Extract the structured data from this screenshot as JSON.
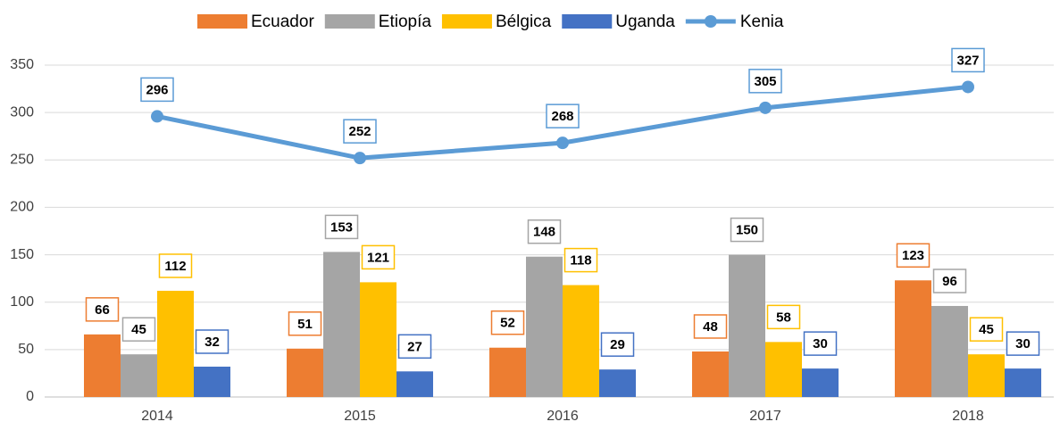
{
  "chart_data": {
    "type": "bar",
    "categories": [
      "2014",
      "2015",
      "2016",
      "2017",
      "2018"
    ],
    "series": [
      {
        "name": "Ecuador",
        "type": "bar",
        "color": "#ed7d31",
        "values": [
          66,
          51,
          52,
          48,
          123
        ]
      },
      {
        "name": "Etiopía",
        "type": "bar",
        "color": "#a5a5a5",
        "values": [
          45,
          153,
          148,
          150,
          96
        ]
      },
      {
        "name": "Bélgica",
        "type": "bar",
        "color": "#ffc000",
        "values": [
          112,
          121,
          118,
          58,
          45
        ]
      },
      {
        "name": "Uganda",
        "type": "bar",
        "color": "#4472c4",
        "values": [
          32,
          27,
          29,
          30,
          30
        ]
      },
      {
        "name": "Kenia",
        "type": "line",
        "color": "#5b9bd5",
        "values": [
          296,
          252,
          268,
          305,
          327
        ]
      }
    ],
    "ylim": [
      0,
      350
    ],
    "yticks": [
      0,
      50,
      100,
      150,
      200,
      250,
      300,
      350
    ],
    "grid": true,
    "legend": "top"
  }
}
